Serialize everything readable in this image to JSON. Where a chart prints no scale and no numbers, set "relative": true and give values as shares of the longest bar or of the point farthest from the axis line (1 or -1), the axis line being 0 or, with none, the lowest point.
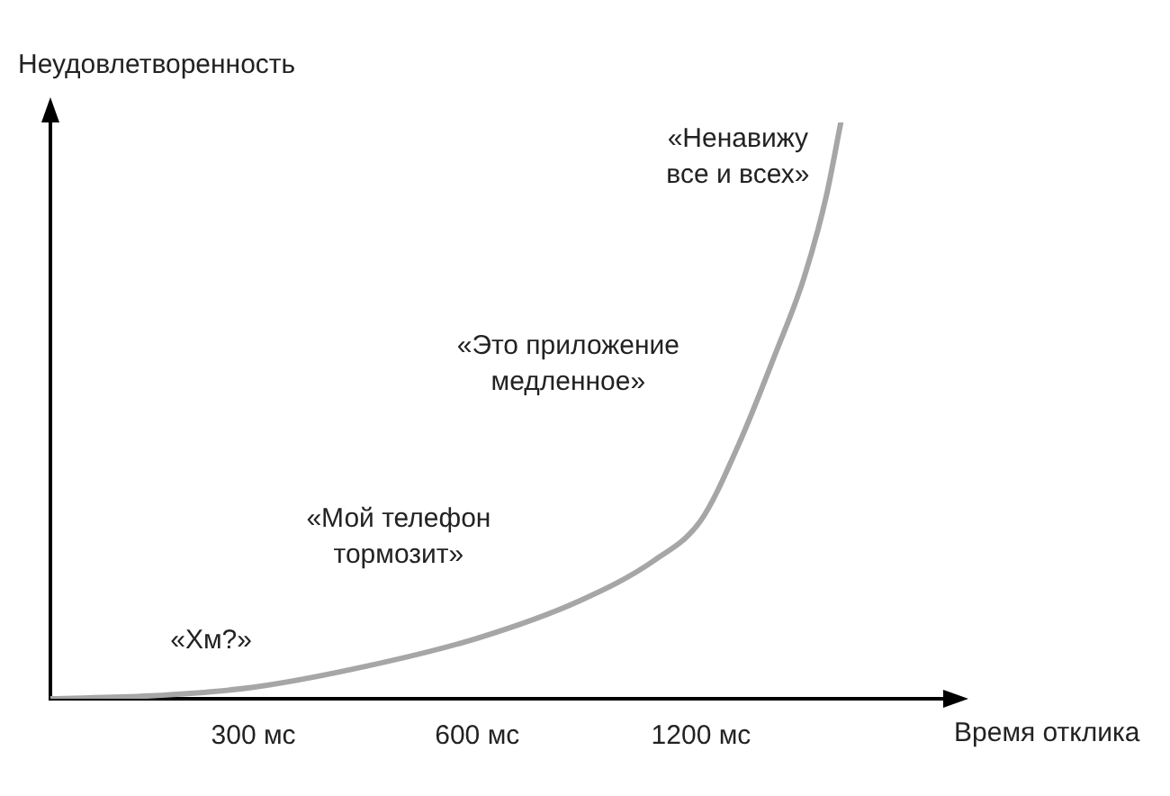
{
  "chart_data": {
    "type": "line",
    "relative": true,
    "xlabel": "Время отклика",
    "ylabel": "Неудовлетворенность",
    "log": "x",
    "xlim": [
      160,
      2540
    ],
    "xticks": [
      {
        "value": 300,
        "label": "300 мс"
      },
      {
        "value": 600,
        "label": "600 мс"
      },
      {
        "value": 1200,
        "label": "1200 мс"
      }
    ],
    "grid": false,
    "legend": false,
    "marker": "none",
    "line_style": "solid",
    "x": [
      160,
      218,
      300,
      424,
      600,
      824,
      1038,
      1200,
      1347,
      1512,
      1650,
      1767,
      1850
    ],
    "series": [
      {
        "color": "#a6a6a6",
        "values": [
          0,
          0.005,
          0.02,
          0.056,
          0.105,
          0.17,
          0.24,
          0.31,
          0.44,
          0.6,
          0.73,
          0.87,
          1.0
        ]
      }
    ],
    "annotations": [
      "«Хм?»",
      "«Мой телефон\nтормозит»",
      "«Это приложение\nмедленное»",
      "«Ненавижу\nвсе и всех»"
    ]
  }
}
